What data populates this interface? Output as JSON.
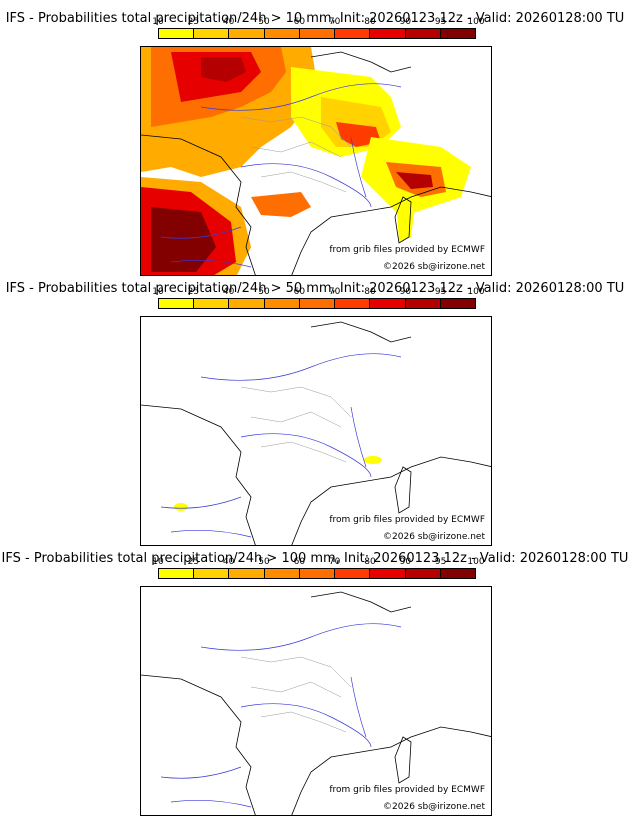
{
  "legend": {
    "tick_labels": [
      "10",
      "25",
      "40",
      "50",
      "60",
      "70",
      "80",
      "90",
      "95",
      "100"
    ],
    "colors": [
      "#ffff00",
      "#ffd200",
      "#ffab00",
      "#ff8c00",
      "#ff6e00",
      "#ff3c00",
      "#e60000",
      "#b40000",
      "#820000"
    ]
  },
  "credits": {
    "source": "from grib files provided by ECMWF",
    "copyright": "©2026 sb@irizone.net"
  },
  "panels": [
    {
      "title": "IFS - Probabilities total precipitation/24h > 10 mm, Init: 20260123 12z - Valid: 20260128:00 TU"
    },
    {
      "title": "IFS - Probabilities total precipitation/24h > 50 mm, Init: 20260123 12z - Valid: 20260128:00 TU"
    },
    {
      "title": "IFS - Probabilities total precipitation/24h > 100 mm, Init: 20260123 12z - Valid: 20260128:00 TU"
    }
  ]
}
